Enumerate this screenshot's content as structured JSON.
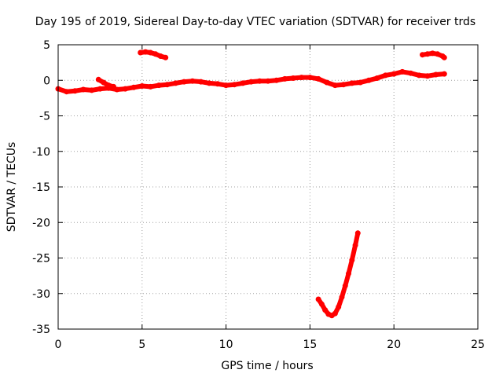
{
  "chart_data": {
    "type": "scatter",
    "title": "Day 195 of 2019, Sidereal Day-to-day VTEC variation (SDTVAR) for receiver trds",
    "xlabel": "GPS time / hours",
    "ylabel": "SDTVAR / TECUs",
    "xlim": [
      0,
      25
    ],
    "ylim": [
      -35,
      5
    ],
    "xticks": [
      0,
      5,
      10,
      15,
      20,
      25
    ],
    "yticks": [
      5,
      0,
      -5,
      -10,
      -15,
      -20,
      -25,
      -30,
      -35
    ],
    "grid": true,
    "grid_style": "dotted",
    "series_color": "#ff0000",
    "series": [
      {
        "values": [
          [
            0.0,
            -1.2
          ],
          [
            0.5,
            -1.6
          ],
          [
            1.0,
            -1.5
          ],
          [
            1.5,
            -1.3
          ],
          [
            2.0,
            -1.4
          ],
          [
            2.5,
            -1.2
          ],
          [
            3.0,
            -1.1
          ],
          [
            3.5,
            -1.3
          ],
          [
            4.0,
            -1.2
          ],
          [
            4.5,
            -1.0
          ],
          [
            5.0,
            -0.8
          ],
          [
            5.5,
            -0.9
          ],
          [
            6.0,
            -0.7
          ],
          [
            6.5,
            -0.6
          ],
          [
            7.0,
            -0.4
          ],
          [
            7.5,
            -0.2
          ],
          [
            8.0,
            -0.1
          ],
          [
            8.5,
            -0.2
          ],
          [
            9.0,
            -0.4
          ],
          [
            9.5,
            -0.5
          ],
          [
            10.0,
            -0.7
          ],
          [
            10.5,
            -0.6
          ],
          [
            11.0,
            -0.4
          ],
          [
            11.5,
            -0.2
          ],
          [
            12.0,
            -0.1
          ],
          [
            12.5,
            -0.1
          ],
          [
            13.0,
            0.0
          ],
          [
            13.5,
            0.2
          ],
          [
            14.0,
            0.3
          ],
          [
            14.5,
            0.4
          ],
          [
            15.0,
            0.4
          ],
          [
            15.5,
            0.2
          ],
          [
            16.0,
            -0.3
          ],
          [
            16.5,
            -0.7
          ],
          [
            17.0,
            -0.6
          ],
          [
            17.5,
            -0.4
          ],
          [
            18.0,
            -0.3
          ],
          [
            18.5,
            0.0
          ],
          [
            19.0,
            0.3
          ],
          [
            19.5,
            0.7
          ],
          [
            20.0,
            0.9
          ],
          [
            20.5,
            1.2
          ],
          [
            21.0,
            1.0
          ],
          [
            21.5,
            0.7
          ],
          [
            22.0,
            0.6
          ],
          [
            22.5,
            0.8
          ],
          [
            23.0,
            0.9
          ]
        ]
      },
      {
        "values": [
          [
            2.4,
            0.1
          ],
          [
            2.7,
            -0.3
          ],
          [
            3.0,
            -0.7
          ],
          [
            3.3,
            -0.9
          ]
        ]
      },
      {
        "values": [
          [
            4.9,
            3.9
          ],
          [
            5.2,
            4.0
          ],
          [
            5.5,
            3.9
          ],
          [
            5.8,
            3.7
          ],
          [
            6.1,
            3.4
          ],
          [
            6.4,
            3.2
          ]
        ]
      },
      {
        "values": [
          [
            21.7,
            3.6
          ],
          [
            22.0,
            3.7
          ],
          [
            22.3,
            3.8
          ],
          [
            22.6,
            3.7
          ],
          [
            22.9,
            3.4
          ],
          [
            23.0,
            3.2
          ]
        ]
      },
      {
        "values": [
          [
            15.5,
            -30.8
          ],
          [
            15.7,
            -31.5
          ],
          [
            15.9,
            -32.3
          ],
          [
            16.1,
            -32.9
          ],
          [
            16.3,
            -33.1
          ],
          [
            16.5,
            -32.8
          ],
          [
            16.7,
            -31.9
          ],
          [
            16.9,
            -30.5
          ],
          [
            17.1,
            -28.9
          ],
          [
            17.3,
            -27.2
          ],
          [
            17.5,
            -25.3
          ],
          [
            17.7,
            -23.2
          ],
          [
            17.85,
            -21.5
          ]
        ]
      }
    ]
  }
}
